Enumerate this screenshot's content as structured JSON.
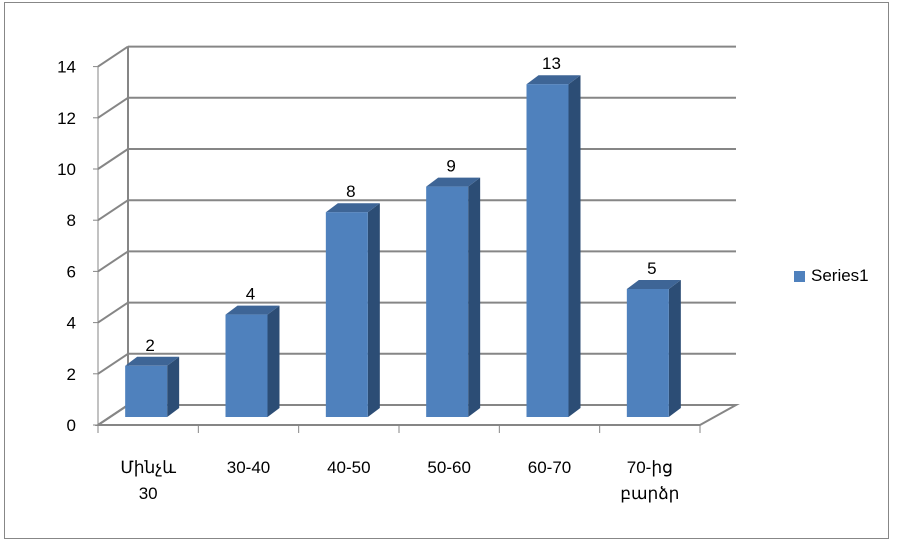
{
  "chart_data": {
    "type": "bar",
    "categories": [
      [
        "Մինչև",
        "30"
      ],
      [
        "30-40"
      ],
      [
        "40-50"
      ],
      [
        "50-60"
      ],
      [
        "60-70"
      ],
      [
        "70-ից",
        "բարձր"
      ]
    ],
    "series": [
      {
        "name": "Series1",
        "values": [
          2,
          4,
          8,
          9,
          13,
          5
        ]
      }
    ],
    "ylim": [
      0,
      14
    ],
    "yticks": [
      "0",
      "2",
      "4",
      "6",
      "8",
      "10",
      "12",
      "14"
    ],
    "title": "",
    "xlabel": "",
    "ylabel": "",
    "grid": true,
    "three_d": true,
    "legend_position": "right",
    "data_labels": true,
    "colors": {
      "bar_front": "#4F81BD",
      "bar_side": "#2C4D75",
      "bar_top": "#3E6596",
      "grid": "#868686",
      "axis": "#868686"
    }
  }
}
